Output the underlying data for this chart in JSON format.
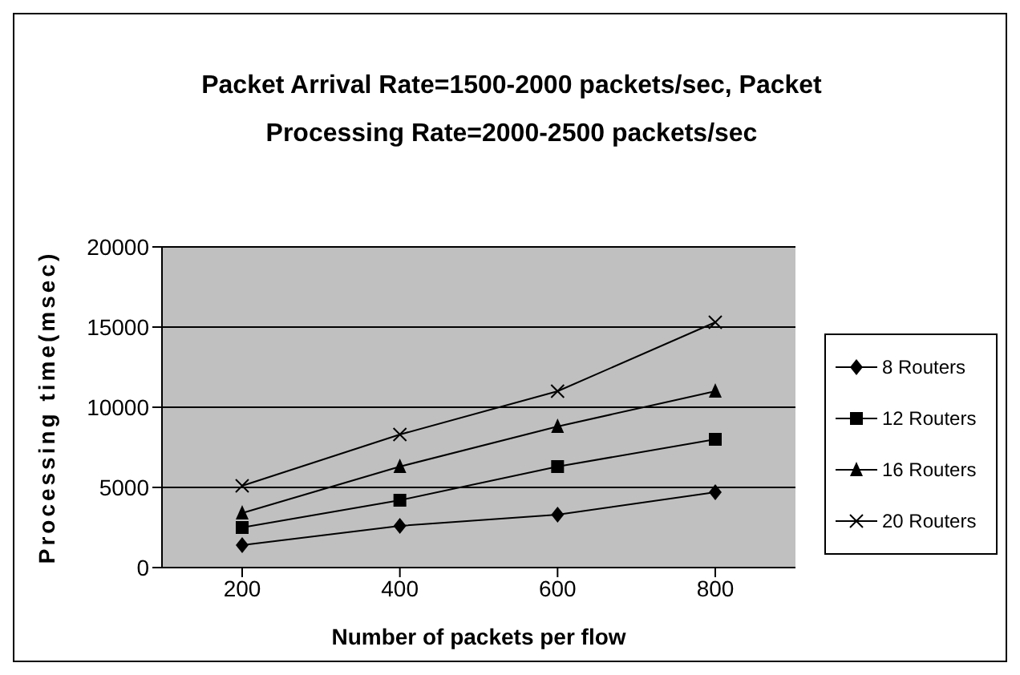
{
  "chart_data": {
    "type": "line",
    "title": "Packet Arrival Rate=1500-2000 packets/sec, Packet Processing Rate=2000-2500 packets/sec",
    "xlabel": "Number of packets per flow",
    "ylabel": "Processing time(msec)",
    "categories": [
      "200",
      "400",
      "600",
      "800"
    ],
    "ylim": [
      0,
      20000
    ],
    "yticks": [
      0,
      5000,
      10000,
      15000,
      20000
    ],
    "grid": "y",
    "legend": "right",
    "line_style": "solid",
    "series": [
      {
        "name": "8 Routers",
        "color": "#000000",
        "marker": "diamond",
        "values": [
          1400,
          2600,
          3300,
          4700
        ]
      },
      {
        "name": "12 Routers",
        "color": "#000000",
        "marker": "square",
        "values": [
          2500,
          4200,
          6300,
          8000
        ]
      },
      {
        "name": "16 Routers",
        "color": "#000000",
        "marker": "triangle",
        "values": [
          3400,
          6300,
          8800,
          11000
        ]
      },
      {
        "name": "20 Routers",
        "color": "#000000",
        "marker": "cross",
        "values": [
          5100,
          8300,
          11000,
          15300
        ]
      }
    ]
  }
}
